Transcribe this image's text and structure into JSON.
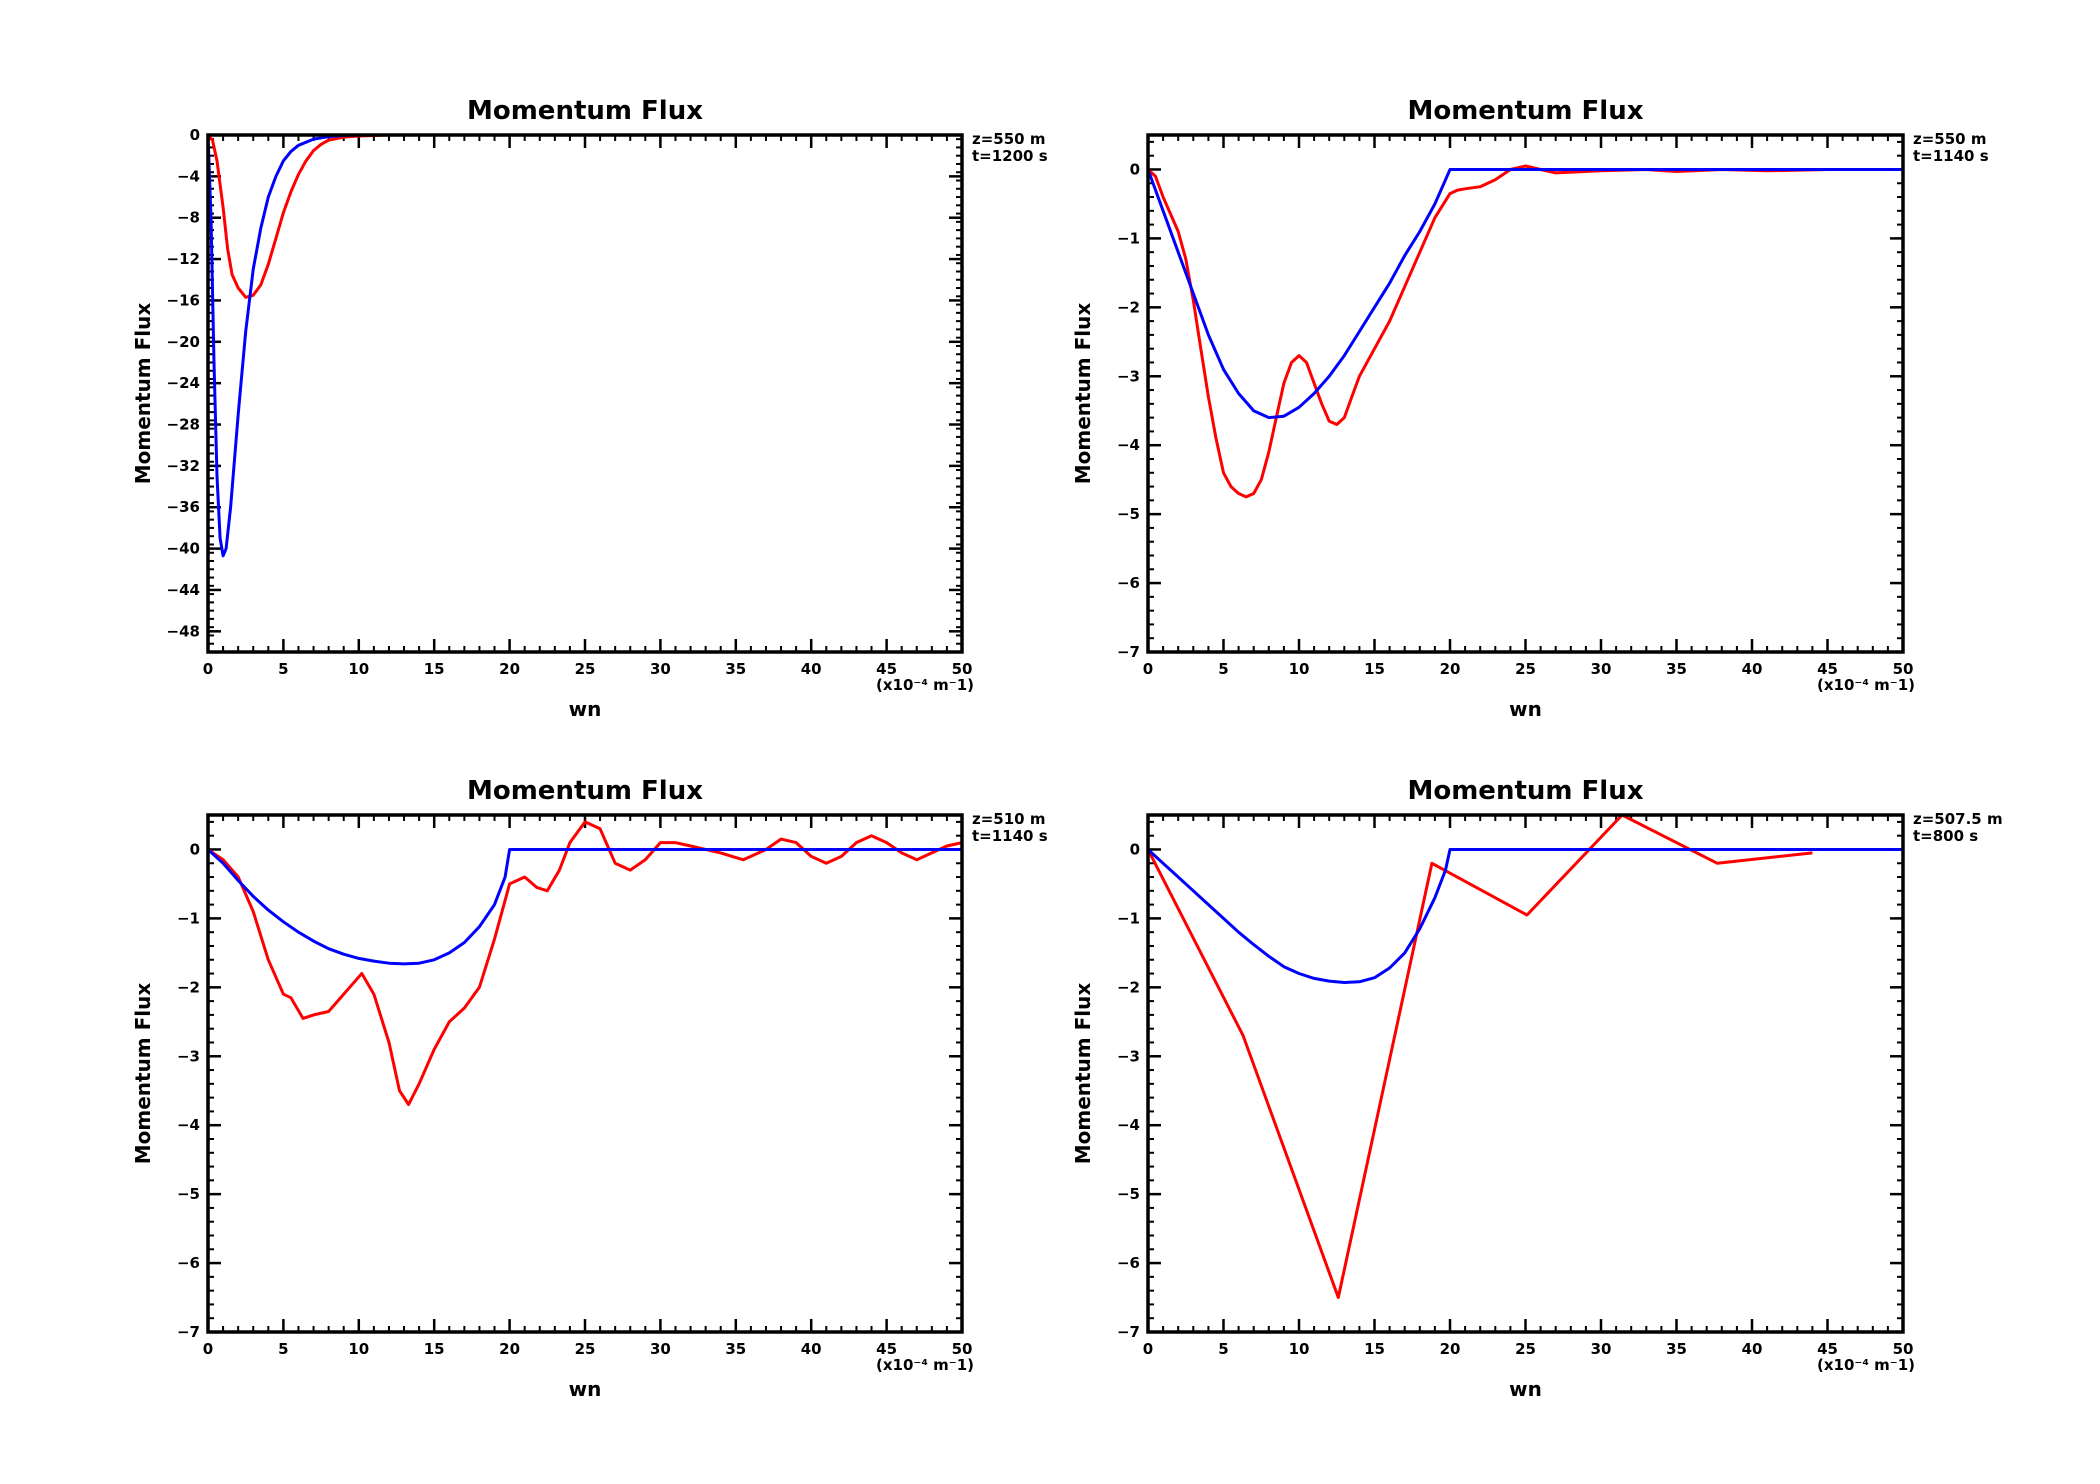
{
  "chart_data": [
    {
      "type": "line",
      "title": "Momentum Flux",
      "xlabel": "wn",
      "ylabel": "Momentum Flux",
      "x_unit_note": "(x10⁻⁴ m⁻1)",
      "annotations": [
        "z=550 m",
        "t=1200 s"
      ],
      "xlim": [
        0,
        50
      ],
      "ylim": [
        -50,
        0
      ],
      "xticks": [
        0,
        5,
        10,
        15,
        20,
        25,
        30,
        35,
        40,
        45,
        50
      ],
      "yticks": [
        0,
        -4,
        -8,
        -12,
        -16,
        -20,
        -24,
        -28,
        -32,
        -36,
        -40,
        -44,
        -48
      ],
      "grid": false,
      "series": [
        {
          "color": "#ff0000",
          "points": [
            [
              0,
              0
            ],
            [
              0.3,
              -0.5
            ],
            [
              0.6,
              -2.5
            ],
            [
              1,
              -7
            ],
            [
              1.3,
              -11
            ],
            [
              1.6,
              -13.5
            ],
            [
              2,
              -14.8
            ],
            [
              2.5,
              -15.7
            ],
            [
              3,
              -15.5
            ],
            [
              3.5,
              -14.5
            ],
            [
              4,
              -12.5
            ],
            [
              4.5,
              -10
            ],
            [
              5,
              -7.5
            ],
            [
              5.5,
              -5.5
            ],
            [
              6,
              -3.8
            ],
            [
              6.5,
              -2.5
            ],
            [
              7,
              -1.5
            ],
            [
              7.5,
              -0.9
            ],
            [
              8,
              -0.5
            ],
            [
              9,
              -0.2
            ],
            [
              10,
              -0.1
            ],
            [
              12,
              0
            ],
            [
              20,
              0
            ],
            [
              50,
              0
            ]
          ]
        },
        {
          "color": "#0000ff",
          "points": [
            [
              0,
              0
            ],
            [
              0.2,
              -8
            ],
            [
              0.4,
              -22
            ],
            [
              0.6,
              -33
            ],
            [
              0.8,
              -39
            ],
            [
              1,
              -40.7
            ],
            [
              1.2,
              -40
            ],
            [
              1.5,
              -36
            ],
            [
              2,
              -27
            ],
            [
              2.5,
              -19
            ],
            [
              3,
              -13
            ],
            [
              3.5,
              -9
            ],
            [
              4,
              -6
            ],
            [
              4.5,
              -4
            ],
            [
              5,
              -2.5
            ],
            [
              5.5,
              -1.6
            ],
            [
              6,
              -1
            ],
            [
              7,
              -0.4
            ],
            [
              8,
              -0.15
            ],
            [
              9,
              -0.05
            ],
            [
              10,
              0
            ],
            [
              50,
              0
            ]
          ]
        }
      ]
    },
    {
      "type": "line",
      "title": "Momentum Flux",
      "xlabel": "wn",
      "ylabel": "Momentum Flux",
      "x_unit_note": "(x10⁻⁴ m⁻1)",
      "annotations": [
        "z=550 m",
        "t=1140 s"
      ],
      "xlim": [
        0,
        50
      ],
      "ylim": [
        -7,
        0.5
      ],
      "xticks": [
        0,
        5,
        10,
        15,
        20,
        25,
        30,
        35,
        40,
        45,
        50
      ],
      "yticks": [
        0,
        -1,
        -2,
        -3,
        -4,
        -5,
        -6,
        -7
      ],
      "grid": false,
      "series": [
        {
          "color": "#ff0000",
          "points": [
            [
              0,
              0
            ],
            [
              0.5,
              -0.1
            ],
            [
              1,
              -0.4
            ],
            [
              2,
              -0.9
            ],
            [
              2.5,
              -1.3
            ],
            [
              3,
              -1.9
            ],
            [
              3.5,
              -2.6
            ],
            [
              4,
              -3.3
            ],
            [
              4.5,
              -3.9
            ],
            [
              5,
              -4.4
            ],
            [
              5.5,
              -4.6
            ],
            [
              6,
              -4.7
            ],
            [
              6.5,
              -4.75
            ],
            [
              7,
              -4.7
            ],
            [
              7.5,
              -4.5
            ],
            [
              8,
              -4.1
            ],
            [
              8.5,
              -3.6
            ],
            [
              9,
              -3.1
            ],
            [
              9.5,
              -2.8
            ],
            [
              10,
              -2.7
            ],
            [
              10.5,
              -2.8
            ],
            [
              11,
              -3.1
            ],
            [
              11.5,
              -3.4
            ],
            [
              12,
              -3.65
            ],
            [
              12.5,
              -3.7
            ],
            [
              13,
              -3.6
            ],
            [
              13.5,
              -3.3
            ],
            [
              14,
              -3
            ],
            [
              15,
              -2.6
            ],
            [
              16,
              -2.2
            ],
            [
              17,
              -1.7
            ],
            [
              18,
              -1.2
            ],
            [
              19,
              -0.7
            ],
            [
              20,
              -0.35
            ],
            [
              20.5,
              -0.3
            ],
            [
              21,
              -0.28
            ],
            [
              22,
              -0.25
            ],
            [
              23,
              -0.15
            ],
            [
              24,
              0
            ],
            [
              25,
              0.05
            ],
            [
              26,
              0
            ],
            [
              27,
              -0.05
            ],
            [
              30,
              -0.02
            ],
            [
              33,
              0
            ],
            [
              35,
              -0.03
            ],
            [
              38,
              0
            ],
            [
              41,
              -0.02
            ],
            [
              45,
              0
            ],
            [
              50,
              0
            ]
          ]
        },
        {
          "color": "#0000ff",
          "points": [
            [
              0,
              0
            ],
            [
              1,
              -0.6
            ],
            [
              2,
              -1.2
            ],
            [
              3,
              -1.8
            ],
            [
              4,
              -2.4
            ],
            [
              5,
              -2.9
            ],
            [
              6,
              -3.25
            ],
            [
              7,
              -3.5
            ],
            [
              8,
              -3.6
            ],
            [
              9,
              -3.58
            ],
            [
              10,
              -3.45
            ],
            [
              11,
              -3.25
            ],
            [
              12,
              -3
            ],
            [
              13,
              -2.7
            ],
            [
              14,
              -2.35
            ],
            [
              15,
              -2
            ],
            [
              16,
              -1.65
            ],
            [
              17,
              -1.25
            ],
            [
              18,
              -0.9
            ],
            [
              19,
              -0.5
            ],
            [
              19.7,
              -0.15
            ],
            [
              20,
              0
            ],
            [
              50,
              0
            ]
          ]
        }
      ]
    },
    {
      "type": "line",
      "title": "Momentum Flux",
      "xlabel": "wn",
      "ylabel": "Momentum Flux",
      "x_unit_note": "(x10⁻⁴ m⁻1)",
      "annotations": [
        "z=510 m",
        "t=1140 s"
      ],
      "xlim": [
        0,
        50
      ],
      "ylim": [
        -7,
        0.5
      ],
      "xticks": [
        0,
        5,
        10,
        15,
        20,
        25,
        30,
        35,
        40,
        45,
        50
      ],
      "yticks": [
        0,
        -1,
        -2,
        -3,
        -4,
        -5,
        -6,
        -7
      ],
      "grid": false,
      "series": [
        {
          "color": "#ff0000",
          "points": [
            [
              0,
              0
            ],
            [
              1,
              -0.15
            ],
            [
              2,
              -0.4
            ],
            [
              3,
              -0.9
            ],
            [
              4,
              -1.6
            ],
            [
              5,
              -2.1
            ],
            [
              5.5,
              -2.15
            ],
            [
              6.3,
              -2.45
            ],
            [
              7,
              -2.4
            ],
            [
              8,
              -2.35
            ],
            [
              9,
              -2.1
            ],
            [
              10.2,
              -1.8
            ],
            [
              11,
              -2.1
            ],
            [
              12,
              -2.8
            ],
            [
              12.7,
              -3.5
            ],
            [
              13.3,
              -3.7
            ],
            [
              14,
              -3.4
            ],
            [
              15,
              -2.9
            ],
            [
              16,
              -2.5
            ],
            [
              17,
              -2.3
            ],
            [
              18,
              -2
            ],
            [
              19,
              -1.3
            ],
            [
              20,
              -0.5
            ],
            [
              21,
              -0.4
            ],
            [
              21.8,
              -0.55
            ],
            [
              22.5,
              -0.6
            ],
            [
              23.3,
              -0.3
            ],
            [
              24,
              0.1
            ],
            [
              25,
              0.4
            ],
            [
              26,
              0.3
            ],
            [
              27,
              -0.2
            ],
            [
              28,
              -0.3
            ],
            [
              29,
              -0.15
            ],
            [
              30,
              0.1
            ],
            [
              31,
              0.1
            ],
            [
              32,
              0.05
            ],
            [
              34,
              -0.05
            ],
            [
              35.5,
              -0.15
            ],
            [
              37,
              0
            ],
            [
              38,
              0.15
            ],
            [
              39,
              0.1
            ],
            [
              40,
              -0.1
            ],
            [
              41,
              -0.2
            ],
            [
              42,
              -0.1
            ],
            [
              43,
              0.1
            ],
            [
              44,
              0.2
            ],
            [
              45,
              0.1
            ],
            [
              46,
              -0.05
            ],
            [
              47,
              -0.15
            ],
            [
              48,
              -0.05
            ],
            [
              49,
              0.05
            ],
            [
              50,
              0.1
            ]
          ]
        },
        {
          "color": "#0000ff",
          "points": [
            [
              0,
              0
            ],
            [
              1,
              -0.2
            ],
            [
              2,
              -0.45
            ],
            [
              3,
              -0.68
            ],
            [
              4,
              -0.88
            ],
            [
              5,
              -1.05
            ],
            [
              6,
              -1.2
            ],
            [
              7,
              -1.33
            ],
            [
              8,
              -1.44
            ],
            [
              9,
              -1.52
            ],
            [
              10,
              -1.58
            ],
            [
              11,
              -1.62
            ],
            [
              12,
              -1.65
            ],
            [
              13,
              -1.66
            ],
            [
              14,
              -1.65
            ],
            [
              15,
              -1.6
            ],
            [
              16,
              -1.5
            ],
            [
              17,
              -1.35
            ],
            [
              18,
              -1.12
            ],
            [
              19,
              -0.8
            ],
            [
              19.7,
              -0.4
            ],
            [
              20,
              0
            ],
            [
              50,
              0
            ]
          ]
        }
      ]
    },
    {
      "type": "line",
      "title": "Momentum Flux",
      "xlabel": "wn",
      "ylabel": "Momentum Flux",
      "x_unit_note": "(x10⁻⁴ m⁻1)",
      "annotations": [
        "z=507.5 m",
        "t=800 s"
      ],
      "xlim": [
        0,
        50
      ],
      "ylim": [
        -7,
        0.5
      ],
      "xticks": [
        0,
        5,
        10,
        15,
        20,
        25,
        30,
        35,
        40,
        45,
        50
      ],
      "yticks": [
        0,
        -1,
        -2,
        -3,
        -4,
        -5,
        -6,
        -7
      ],
      "grid": false,
      "series": [
        {
          "color": "#ff0000",
          "points": [
            [
              0,
              0
            ],
            [
              6.3,
              -2.7
            ],
            [
              12.6,
              -6.5
            ],
            [
              18.8,
              -0.2
            ],
            [
              25.1,
              -0.95
            ],
            [
              31.4,
              0.5
            ],
            [
              37.7,
              -0.2
            ],
            [
              44,
              -0.05
            ]
          ]
        },
        {
          "color": "#0000ff",
          "points": [
            [
              0,
              0
            ],
            [
              1,
              -0.2
            ],
            [
              2,
              -0.4
            ],
            [
              3,
              -0.6
            ],
            [
              4,
              -0.8
            ],
            [
              5,
              -1
            ],
            [
              6,
              -1.2
            ],
            [
              7,
              -1.38
            ],
            [
              8,
              -1.55
            ],
            [
              9,
              -1.7
            ],
            [
              10,
              -1.8
            ],
            [
              11,
              -1.87
            ],
            [
              12,
              -1.91
            ],
            [
              13,
              -1.93
            ],
            [
              14,
              -1.92
            ],
            [
              15,
              -1.86
            ],
            [
              16,
              -1.72
            ],
            [
              17,
              -1.5
            ],
            [
              18,
              -1.15
            ],
            [
              19,
              -0.7
            ],
            [
              19.7,
              -0.3
            ],
            [
              20,
              0
            ],
            [
              50,
              0
            ]
          ]
        }
      ]
    }
  ]
}
